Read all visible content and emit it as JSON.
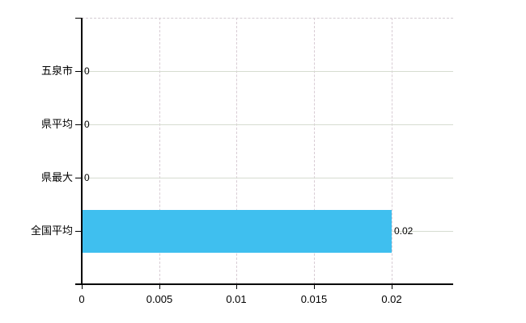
{
  "chart_data": {
    "type": "bar",
    "orientation": "horizontal",
    "title": "",
    "xlabel": "",
    "ylabel": "",
    "categories": [
      "五泉市",
      "県平均",
      "県最大",
      "全国平均"
    ],
    "values": [
      0,
      0,
      0,
      0.02
    ],
    "value_labels": [
      "0",
      "0",
      "0",
      "0.02"
    ],
    "x_ticks": [
      0,
      0.005,
      0.01,
      0.015,
      0.02
    ],
    "x_tick_labels": [
      "0",
      "0.005",
      "0.01",
      "0.015",
      "0.02"
    ],
    "xlim": [
      0,
      0.024
    ],
    "grid": true,
    "legend": false,
    "colors": {
      "bar": "#3fbfef",
      "axis": "#000000",
      "horizontal_gridline": "#d6dcd0",
      "vertical_gridline": "#d8ccd4",
      "top_boundary_dashed": "#d4ccd2",
      "text": "#000000",
      "background": "#ffffff"
    }
  }
}
